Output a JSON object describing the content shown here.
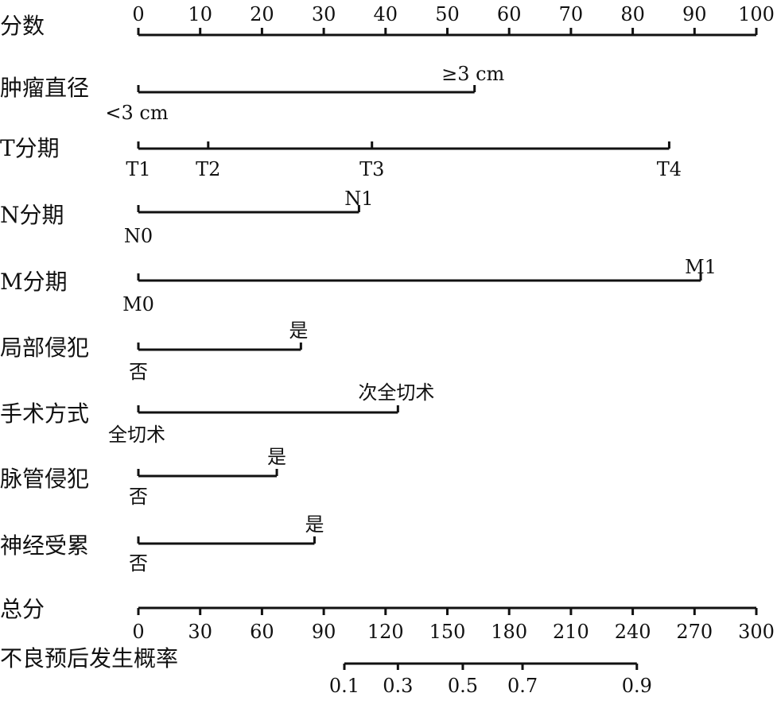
{
  "chart_data": {
    "type": "nomogram",
    "points_axis": {
      "label": "分数",
      "range": [
        0,
        100
      ],
      "ticks": [
        0,
        10,
        20,
        30,
        40,
        50,
        60,
        70,
        80,
        90,
        100
      ]
    },
    "variables": [
      {
        "key": "tumor_diameter",
        "label": "肿瘤直径",
        "categories": [
          {
            "label": "<3 cm",
            "points": 0
          },
          {
            "label": "≥3 cm",
            "points": 54.4
          }
        ]
      },
      {
        "key": "t_stage",
        "label": "T分期",
        "categories": [
          {
            "label": "T1",
            "points": 0
          },
          {
            "label": "T2",
            "points": 11.3
          },
          {
            "label": "T3",
            "points": 37.8
          },
          {
            "label": "T4",
            "points": 85.9
          }
        ]
      },
      {
        "key": "n_stage",
        "label": "N分期",
        "categories": [
          {
            "label": "N0",
            "points": 0
          },
          {
            "label": "N1",
            "points": 35.7
          }
        ]
      },
      {
        "key": "m_stage",
        "label": "M分期",
        "categories": [
          {
            "label": "M0",
            "points": 0
          },
          {
            "label": "M1",
            "points": 91
          }
        ]
      },
      {
        "key": "local_invasion",
        "label": "局部侵犯",
        "categories": [
          {
            "label": "否",
            "points": 0
          },
          {
            "label": "是",
            "points": 26.3
          }
        ]
      },
      {
        "key": "surgery",
        "label": "手术方式",
        "categories": [
          {
            "label": "全切术",
            "points": 0
          },
          {
            "label": "次全切术",
            "points": 42
          }
        ]
      },
      {
        "key": "vascular_invasion",
        "label": "脉管侵犯",
        "categories": [
          {
            "label": "否",
            "points": 0
          },
          {
            "label": "是",
            "points": 22.4
          }
        ]
      },
      {
        "key": "nerve_involvement",
        "label": "神经受累",
        "categories": [
          {
            "label": "否",
            "points": 0
          },
          {
            "label": "是",
            "points": 28.5
          }
        ]
      }
    ],
    "total_points_axis": {
      "label": "总分",
      "range": [
        0,
        300
      ],
      "ticks": [
        0,
        30,
        60,
        90,
        120,
        150,
        180,
        210,
        240,
        270,
        300
      ]
    },
    "probability_axis": {
      "label": "不良预后发生概率",
      "ticks": [
        {
          "label": "0.1",
          "total_points": 100
        },
        {
          "label": "0.3",
          "total_points": 126
        },
        {
          "label": "0.5",
          "total_points": 157.5
        },
        {
          "label": "0.7",
          "total_points": 186.5
        },
        {
          "label": "0.9",
          "total_points": 242
        }
      ]
    }
  }
}
